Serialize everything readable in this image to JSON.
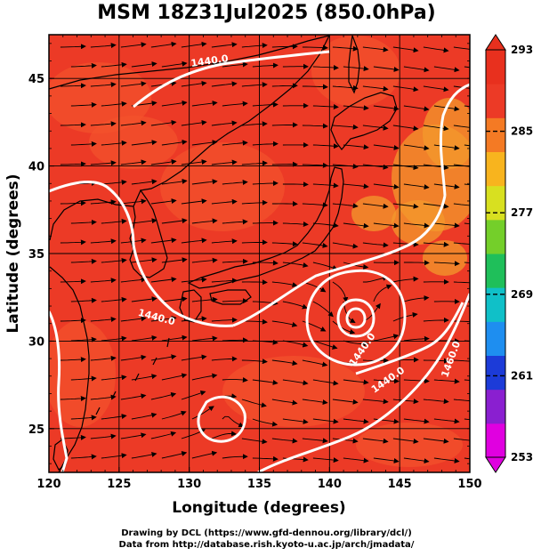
{
  "title": "MSM 18Z31Jul2025 (850.0hPa)",
  "axes": {
    "xlabel": "Longitude (degrees)",
    "ylabel": "Latitude  (degrees)",
    "x_ticks": [
      "120",
      "125",
      "130",
      "135",
      "140",
      "145",
      "150"
    ],
    "y_ticks": [
      "25",
      "30",
      "35",
      "40",
      "45"
    ],
    "x_range": [
      120,
      150
    ],
    "y_range": [
      22.5,
      47.5
    ]
  },
  "colorbar": {
    "labels": [
      "293",
      "285",
      "277",
      "269",
      "261",
      "253"
    ],
    "range": [
      253,
      293
    ],
    "colors": [
      "#e000e0",
      "#8a1fd0",
      "#1c3bd8",
      "#1e8ef0",
      "#10c0c8",
      "#1fbf5a",
      "#74cf2a",
      "#d8e020",
      "#f8b41e",
      "#f47a24",
      "#ec3a26",
      "#e8301e"
    ]
  },
  "contours": {
    "label_1440": "1440.0",
    "label_1460": "1460.0",
    "color": "#ffffff"
  },
  "field": {
    "base_color": "#ec3a26",
    "warm_patch_color": "#f4522c",
    "cool_patch_color": "#f39a2c"
  },
  "credits": {
    "line1": "Drawing by DCL (https://www.gfd-dennou.org/library/dcl/)",
    "line2": "Data from http://database.rish.kyoto-u.ac.jp/arch/jmadata/"
  }
}
